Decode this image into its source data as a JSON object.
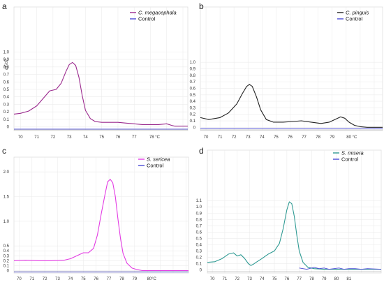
{
  "panels": [
    {
      "letter": "a",
      "chart_data": {
        "type": "line",
        "title": "",
        "xlabel": "",
        "ylabel": "dF/dT",
        "x_ticks": [
          "70",
          "71",
          "72",
          "73",
          "74",
          "75",
          "76",
          "77",
          "78 °C"
        ],
        "y_ticks": [
          "0",
          "0.1",
          "0.2",
          "0.3",
          "0.4",
          "0.5",
          "0.6",
          "0.7",
          "0.8",
          "0.9",
          "1.0"
        ],
        "xlim": [
          69.6,
          80.3
        ],
        "ylim": [
          -0.05,
          1.6
        ],
        "legend_position": "top-right",
        "series": [
          {
            "name": "C. megacephala",
            "color": "#9b2a8e",
            "x": [
              69.6,
              70.0,
              70.5,
              71.0,
              71.4,
              71.8,
              72.2,
              72.5,
              72.8,
              73.0,
              73.2,
              73.4,
              73.6,
              73.8,
              74.0,
              74.3,
              74.6,
              75.0,
              75.5,
              76.0,
              76.5,
              77.0,
              77.5,
              78.0,
              78.5,
              79.0,
              79.3,
              79.5,
              80.0,
              80.3
            ],
            "y": [
              0.17,
              0.18,
              0.21,
              0.28,
              0.38,
              0.48,
              0.5,
              0.58,
              0.74,
              0.83,
              0.86,
              0.82,
              0.66,
              0.42,
              0.22,
              0.11,
              0.07,
              0.06,
              0.06,
              0.06,
              0.05,
              0.04,
              0.03,
              0.03,
              0.03,
              0.04,
              0.02,
              0.01,
              0.01,
              0.01
            ]
          },
          {
            "name": "Control",
            "color": "#4a4ad6",
            "x": [
              69.6,
              80.3
            ],
            "y": [
              -0.03,
              -0.03
            ]
          }
        ]
      }
    },
    {
      "letter": "b",
      "chart_data": {
        "type": "line",
        "title": "",
        "xlabel": "",
        "ylabel": "",
        "x_ticks": [
          "70",
          "71",
          "72",
          "73",
          "74",
          "75",
          "76",
          "77",
          "78",
          "79",
          "80 °C"
        ],
        "y_ticks": [
          "0",
          "0.1",
          "0.2",
          "0.3",
          "0.4",
          "0.5",
          "0.6",
          "0.7",
          "0.8",
          "0.9",
          "1.0"
        ],
        "xlim": [
          69.6,
          82.6
        ],
        "ylim": [
          -0.05,
          1.85
        ],
        "legend_position": "top-right",
        "series": [
          {
            "name": "C. pinguis",
            "color": "#222222",
            "x": [
              69.6,
              70.2,
              71.0,
              71.6,
              72.2,
              72.6,
              72.9,
              73.1,
              73.3,
              73.6,
              73.9,
              74.3,
              74.8,
              75.5,
              76.2,
              76.8,
              77.5,
              78.2,
              78.8,
              79.3,
              79.6,
              79.9,
              80.2,
              80.6,
              81.0,
              81.5,
              82.0,
              82.6
            ],
            "y": [
              0.15,
              0.12,
              0.15,
              0.22,
              0.36,
              0.52,
              0.63,
              0.66,
              0.63,
              0.47,
              0.27,
              0.12,
              0.08,
              0.08,
              0.09,
              0.1,
              0.08,
              0.06,
              0.08,
              0.13,
              0.16,
              0.14,
              0.08,
              0.03,
              0.01,
              0.0,
              0.0,
              0.0
            ]
          },
          {
            "name": "Control",
            "color": "#4a4ad6",
            "x": [
              69.6,
              82.6
            ],
            "y": [
              -0.02,
              -0.02
            ]
          }
        ]
      }
    },
    {
      "letter": "c",
      "chart_data": {
        "type": "line",
        "title": "",
        "xlabel": "",
        "ylabel": "",
        "x_ticks": [
          "70",
          "71",
          "72",
          "73",
          "74",
          "75",
          "76",
          "77",
          "78",
          "79",
          "80°C"
        ],
        "y_ticks": [
          "0",
          "0.1",
          "0.2",
          "0.3",
          "0.4",
          "0.5",
          "1.0",
          "1.5",
          "2.0"
        ],
        "xlim": [
          69.6,
          83.2
        ],
        "ylim": [
          -0.05,
          2.3
        ],
        "legend_position": "top-right",
        "series": [
          {
            "name": "S. sericea",
            "color": "#e33be3",
            "x": [
              69.6,
              70.5,
              71.5,
              72.5,
              73.5,
              74.0,
              74.5,
              75.0,
              75.4,
              75.8,
              76.1,
              76.4,
              76.7,
              76.9,
              77.1,
              77.3,
              77.5,
              77.7,
              77.9,
              78.1,
              78.4,
              78.8,
              79.2,
              79.6,
              80.0,
              80.5,
              81.0,
              82.0,
              83.2
            ],
            "y": [
              0.2,
              0.21,
              0.2,
              0.2,
              0.21,
              0.24,
              0.3,
              0.36,
              0.36,
              0.45,
              0.72,
              1.15,
              1.55,
              1.8,
              1.85,
              1.78,
              1.5,
              1.05,
              0.65,
              0.35,
              0.15,
              0.05,
              0.02,
              0.0,
              0.0,
              0.0,
              0.0,
              0.0,
              0.0
            ]
          },
          {
            "name": "Control",
            "color": "#4a4ad6",
            "x": [
              69.6,
              83.2
            ],
            "y": [
              -0.03,
              -0.03
            ]
          }
        ]
      }
    },
    {
      "letter": "d",
      "chart_data": {
        "type": "line",
        "title": "",
        "xlabel": "",
        "ylabel": "",
        "x_ticks": [
          "70",
          "71",
          "72",
          "73",
          "74",
          "75",
          "76",
          "77",
          "78",
          "79",
          "80",
          "81"
        ],
        "y_ticks": [
          "0",
          "0.1",
          "0.2",
          "0.3",
          "0.4",
          "0.5",
          "0.6",
          "0.7",
          "0.8",
          "0.9",
          "1.0",
          "1.1"
        ],
        "xlim": [
          69.6,
          83.6
        ],
        "ylim": [
          -0.05,
          1.9
        ],
        "legend_position": "top-right",
        "series": [
          {
            "name": "S. misera",
            "color": "#2f9a93",
            "x": [
              69.6,
              70.2,
              70.8,
              71.3,
              71.7,
              72.0,
              72.3,
              72.6,
              72.9,
              73.1,
              73.3,
              73.6,
              74.0,
              74.5,
              75.0,
              75.4,
              75.7,
              76.0,
              76.2,
              76.4,
              76.6,
              76.8,
              77.0,
              77.3,
              77.7,
              78.2,
              79.0,
              80.0,
              81.0,
              82.0,
              83.6
            ],
            "y": [
              0.12,
              0.13,
              0.18,
              0.25,
              0.27,
              0.22,
              0.24,
              0.18,
              0.1,
              0.07,
              0.09,
              0.13,
              0.18,
              0.25,
              0.3,
              0.42,
              0.65,
              0.95,
              1.08,
              1.05,
              0.85,
              0.55,
              0.3,
              0.12,
              0.04,
              0.02,
              0.01,
              0.01,
              0.01,
              0.01,
              0.01
            ]
          },
          {
            "name": "Control",
            "color": "#4a4ad6",
            "x": [
              77.0,
              77.6,
              78.2,
              78.6,
              79.0,
              79.4,
              79.8,
              80.2,
              80.6,
              81.0,
              81.5,
              82.0,
              82.5,
              83.6
            ],
            "y": [
              0.03,
              0.01,
              0.04,
              0.02,
              0.03,
              0.01,
              0.02,
              0.03,
              0.01,
              0.02,
              0.02,
              0.01,
              0.02,
              0.01
            ]
          }
        ]
      }
    }
  ]
}
